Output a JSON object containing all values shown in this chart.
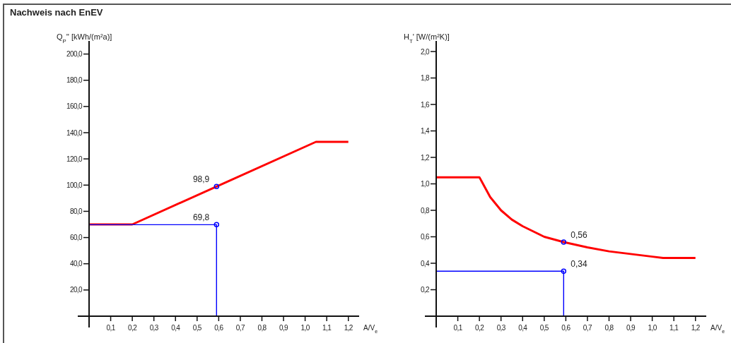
{
  "chart_data": [
    {
      "type": "line",
      "title": "Nachweis nach EnEV",
      "xlabel": "A/V$_{e}$",
      "ylabel": "Q$_{P}$'' [kWh/(m²a)]",
      "xlim": [
        0,
        1.25
      ],
      "ylim": [
        0,
        210
      ],
      "xticks": [
        {
          "value": 0.1,
          "label": "0,1"
        },
        {
          "value": 0.2,
          "label": "0,2"
        },
        {
          "value": 0.3,
          "label": "0,3"
        },
        {
          "value": 0.4,
          "label": "0,4"
        },
        {
          "value": 0.5,
          "label": "0,5"
        },
        {
          "value": 0.6,
          "label": "0,6"
        },
        {
          "value": 0.7,
          "label": "0,7"
        },
        {
          "value": 0.8,
          "label": "0,8"
        },
        {
          "value": 0.9,
          "label": "0,9"
        },
        {
          "value": 1.0,
          "label": "1,0"
        },
        {
          "value": 1.1,
          "label": "1,1"
        },
        {
          "value": 1.2,
          "label": "1,2"
        }
      ],
      "yticks": [
        {
          "value": 20,
          "label": "20,0"
        },
        {
          "value": 40,
          "label": "40,0"
        },
        {
          "value": 60,
          "label": "60,0"
        },
        {
          "value": 80,
          "label": "80,0"
        },
        {
          "value": 100,
          "label": "100,0"
        },
        {
          "value": 120,
          "label": "120,0"
        },
        {
          "value": 140,
          "label": "140,0"
        },
        {
          "value": 160,
          "label": "160,0"
        },
        {
          "value": 180,
          "label": "180,0"
        },
        {
          "value": 200,
          "label": "200,0"
        }
      ],
      "series": [
        {
          "color": "#ff0000",
          "x": [
            0,
            0.2,
            1.05,
            1.2
          ],
          "values": [
            70,
            70,
            133,
            133
          ]
        },
        {
          "color": "#0000ff",
          "x": [
            0,
            0.59,
            0.59
          ],
          "values": [
            69.8,
            69.8,
            0
          ]
        },
        {
          "type": "scatter",
          "color": "#0000ff",
          "marker": "circle",
          "x": [
            0.59,
            0.59
          ],
          "values": [
            98.9,
            69.8
          ],
          "value_labels": [
            "98,9",
            "69,8"
          ]
        }
      ]
    },
    {
      "type": "line",
      "xlabel": "A/V$_{e}$",
      "ylabel": "H$_{T}$' [W/(m²K)]",
      "xlim": [
        0,
        1.25
      ],
      "ylim": [
        0,
        2.08
      ],
      "xticks": [
        {
          "value": 0.1,
          "label": "0,1"
        },
        {
          "value": 0.2,
          "label": "0,2"
        },
        {
          "value": 0.3,
          "label": "0,3"
        },
        {
          "value": 0.4,
          "label": "0,4"
        },
        {
          "value": 0.5,
          "label": "0,5"
        },
        {
          "value": 0.6,
          "label": "0,6"
        },
        {
          "value": 0.7,
          "label": "0,7"
        },
        {
          "value": 0.8,
          "label": "0,8"
        },
        {
          "value": 0.9,
          "label": "0,9"
        },
        {
          "value": 1.0,
          "label": "1,0"
        },
        {
          "value": 1.1,
          "label": "1,1"
        },
        {
          "value": 1.2,
          "label": "1,2"
        }
      ],
      "yticks": [
        {
          "value": 0.2,
          "label": "0,2"
        },
        {
          "value": 0.4,
          "label": "0,4"
        },
        {
          "value": 0.6,
          "label": "0,6"
        },
        {
          "value": 0.8,
          "label": "0,8"
        },
        {
          "value": 1.0,
          "label": "1,0"
        },
        {
          "value": 1.2,
          "label": "1,2"
        },
        {
          "value": 1.4,
          "label": "1,4"
        },
        {
          "value": 1.6,
          "label": "1,6"
        },
        {
          "value": 1.8,
          "label": "1,8"
        },
        {
          "value": 2.0,
          "label": "2,0"
        }
      ],
      "series": [
        {
          "color": "#ff0000",
          "x": [
            0,
            0.2,
            0.25,
            0.3,
            0.35,
            0.4,
            0.5,
            0.59,
            0.7,
            0.8,
            0.9,
            1.0,
            1.05,
            1.2
          ],
          "values": [
            1.05,
            1.05,
            0.9,
            0.8,
            0.73,
            0.68,
            0.6,
            0.56,
            0.52,
            0.49,
            0.47,
            0.45,
            0.44,
            0.44
          ]
        },
        {
          "color": "#0000ff",
          "x": [
            0,
            0.59,
            0.59
          ],
          "values": [
            0.34,
            0.34,
            0
          ]
        },
        {
          "type": "scatter",
          "color": "#0000ff",
          "marker": "circle",
          "x": [
            0.59,
            0.59
          ],
          "values": [
            0.56,
            0.34
          ],
          "value_labels": [
            "0,56",
            "0,34"
          ]
        }
      ]
    }
  ]
}
